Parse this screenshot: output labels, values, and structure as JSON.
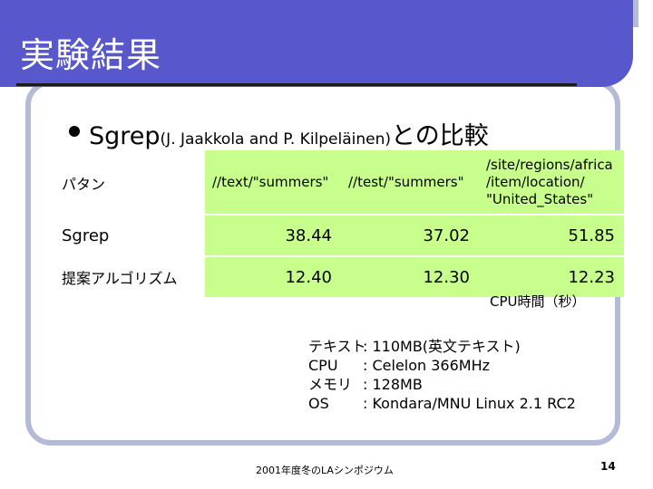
{
  "slide": {
    "title": "実験結果",
    "bullet_main": "Sgrep",
    "bullet_ref": "(J. Jaakkola and P. Kilpeläinen)",
    "bullet_suffix": "との比較",
    "table": {
      "headers": [
        "パタン",
        "//text/\"summers\"",
        "//test/\"summers\"",
        "/site/regions/africa /item/location/ \"United_States\""
      ],
      "rows": [
        {
          "label": "Sgrep",
          "values": [
            "38.44",
            "37.02",
            "51.85"
          ]
        },
        {
          "label": "提案アルゴリズム",
          "values": [
            "12.40",
            "12.30",
            "12.23"
          ]
        }
      ]
    },
    "cpu_time_label": "CPU時間（秒）",
    "spec": [
      {
        "key": "テキスト",
        "value": ": 110MB(英文テキスト)"
      },
      {
        "key": "CPU",
        "value": ": Celelon 366MHz"
      },
      {
        "key": "メモリ",
        "value": ": 128MB"
      },
      {
        "key": "OS",
        "value": ": Kondara/MNU Linux 2.1 RC2"
      }
    ],
    "footer": "2001年度冬のLAシンポジウム",
    "page_number": "14"
  },
  "colors": {
    "header": "#5858cc",
    "highlight": "#c8ff8c",
    "frame": "#b4bbd6"
  }
}
